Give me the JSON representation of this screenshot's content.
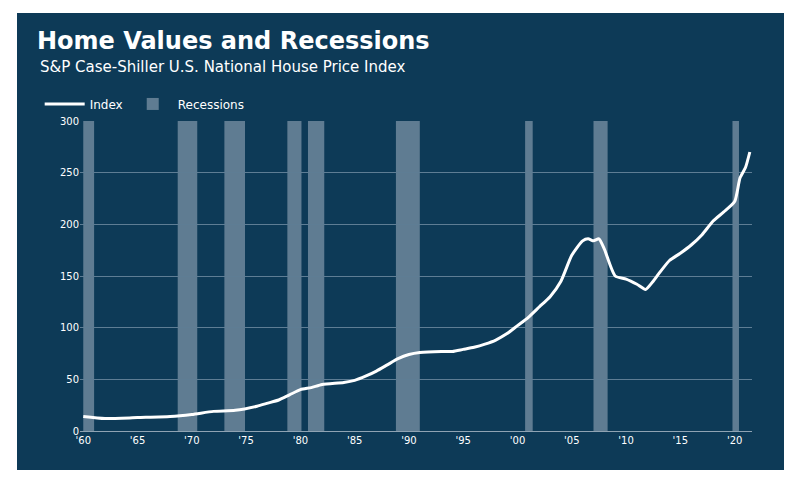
{
  "chart_data": {
    "type": "line",
    "title": "Home Values and Recessions",
    "subtitle": "S&P Case-Shiller U.S. National House Price Index",
    "x": [
      1960,
      1962,
      1965,
      1968,
      1970,
      1972,
      1974,
      1976,
      1977,
      1978,
      1979,
      1980,
      1981,
      1982,
      1984,
      1985,
      1986,
      1987,
      1988,
      1989,
      1990,
      1991,
      1993,
      1994,
      1995,
      1996,
      1997,
      1998,
      1999,
      2000,
      2001,
      2002,
      2003,
      2004,
      2005,
      2006,
      2006.5,
      2007,
      2007.5,
      2008,
      2009,
      2010,
      2011,
      2011.8,
      2012.5,
      2013,
      2014,
      2015,
      2016,
      2017,
      2018,
      2019,
      2020,
      2020.5,
      2021,
      2021.4
    ],
    "series": [
      {
        "name": "Index",
        "color": "#ffffff",
        "values": [
          14,
          12,
          13,
          14,
          16,
          19,
          20,
          24,
          27,
          30,
          35,
          40,
          42,
          45,
          47,
          49,
          53,
          58,
          64,
          70,
          74,
          76,
          77,
          77,
          79,
          81,
          84,
          88,
          94,
          102,
          110,
          120,
          130,
          145,
          170,
          184,
          186,
          184,
          186,
          176,
          150,
          147,
          142,
          137,
          145,
          152,
          165,
          172,
          180,
          190,
          203,
          212,
          222,
          245,
          255,
          270
        ]
      }
    ],
    "recessions": {
      "name": "Recessions",
      "color": "#7b93a6",
      "periods": [
        [
          1960.0,
          1961.0
        ],
        [
          1968.7,
          1970.5
        ],
        [
          1973.0,
          1974.9
        ],
        [
          1978.8,
          1980.1
        ],
        [
          1980.7,
          1982.2
        ],
        [
          1988.8,
          1991.0
        ],
        [
          2000.7,
          2001.4
        ],
        [
          2007.0,
          2008.3
        ],
        [
          2019.8,
          2020.4
        ]
      ]
    },
    "xlim": [
      1959.7,
      2021.6
    ],
    "xticks": [
      {
        "value": 1960,
        "label": "'60"
      },
      {
        "value": 1965,
        "label": "'65"
      },
      {
        "value": 1970,
        "label": "'70"
      },
      {
        "value": 1975,
        "label": "'75"
      },
      {
        "value": 1980,
        "label": "'80"
      },
      {
        "value": 1985,
        "label": "'85"
      },
      {
        "value": 1990,
        "label": "'90"
      },
      {
        "value": 1995,
        "label": "'95"
      },
      {
        "value": 2000,
        "label": "'00"
      },
      {
        "value": 2005,
        "label": "'05"
      },
      {
        "value": 2010,
        "label": "'10"
      },
      {
        "value": 2015,
        "label": "'15"
      },
      {
        "value": 2020,
        "label": "'20"
      }
    ],
    "ylim": [
      0,
      300
    ],
    "yticks": [
      0,
      50,
      100,
      150,
      200,
      250,
      300
    ],
    "grid": true,
    "legend": "top left"
  }
}
